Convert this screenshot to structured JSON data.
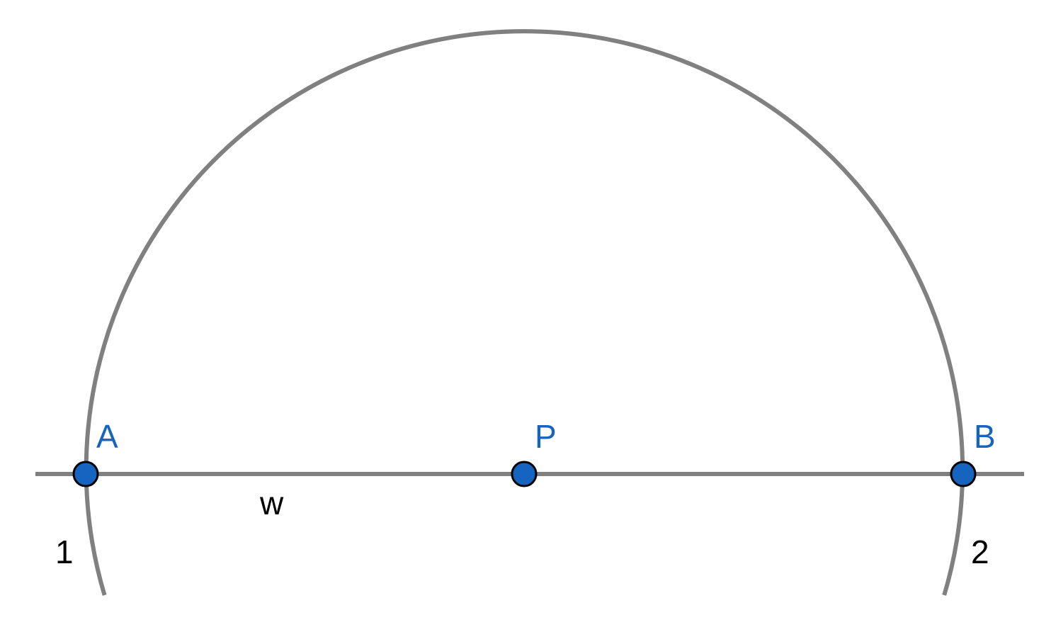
{
  "diagram": {
    "points": [
      {
        "id": "A",
        "label": "A"
      },
      {
        "id": "P",
        "label": "P"
      },
      {
        "id": "B",
        "label": "B"
      }
    ],
    "line": {
      "label": "w"
    },
    "arcs": {
      "left_label": "1",
      "right_label": "2"
    },
    "colors": {
      "point_fill": "#1565C0",
      "point_label": "#1565C0",
      "stroke": "#808080",
      "text": "#000000"
    }
  }
}
